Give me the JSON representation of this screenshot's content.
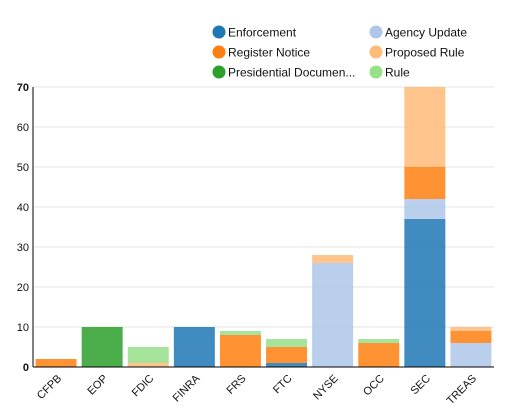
{
  "chart_data": {
    "type": "bar",
    "stacked": true,
    "categories": [
      "CFPB",
      "EOP",
      "FDIC",
      "FINRA",
      "FRS",
      "FTC",
      "NYSE",
      "OCC",
      "SEC",
      "TREAS"
    ],
    "ylim": [
      0,
      70
    ],
    "yticks": [
      0,
      10,
      20,
      30,
      40,
      50,
      60,
      70
    ],
    "grid": true,
    "legend_position": "top",
    "series": [
      {
        "name": "Enforcement",
        "color": "#1f77b4",
        "values": [
          0,
          0,
          0,
          10,
          0,
          1,
          0,
          0,
          37,
          0
        ]
      },
      {
        "name": "Agency Update",
        "color": "#aec7e8",
        "values": [
          0,
          0,
          0,
          0,
          0,
          0,
          26,
          0,
          5,
          6
        ]
      },
      {
        "name": "Register Notice",
        "color": "#ff7f0e",
        "values": [
          2,
          0,
          0,
          0,
          8,
          4,
          0,
          6,
          8,
          3
        ]
      },
      {
        "name": "Proposed Rule",
        "color": "#ffbb78",
        "values": [
          0,
          0,
          1,
          0,
          0,
          0,
          2,
          0,
          20,
          1
        ]
      },
      {
        "name": "Presidential Documen...",
        "color": "#2ca02c",
        "values": [
          0,
          10,
          0,
          0,
          0,
          0,
          0,
          0,
          0,
          0
        ]
      },
      {
        "name": "Rule",
        "color": "#98df8a",
        "values": [
          0,
          0,
          4,
          0,
          1,
          2,
          0,
          1,
          0,
          0
        ]
      }
    ]
  }
}
